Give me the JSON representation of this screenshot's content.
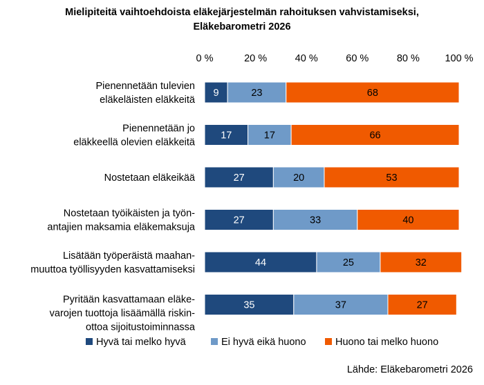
{
  "chart_data": {
    "type": "bar",
    "orientation": "horizontal",
    "stacked": true,
    "title": [
      "Mielipiteitä vaihtoehdoista eläkejärjestelmän rahoituksen vahvistamiseksi,",
      "Eläkebarometri 2026"
    ],
    "categories": [
      [
        "Pienennetään tulevien",
        "eläkeläisten eläkkeitä"
      ],
      [
        "Pienennetään jo",
        "eläkkeellä olevien eläkkeitä"
      ],
      [
        "Nostetaan eläkeikää"
      ],
      [
        "Nostetaan työikäisten ja työn-",
        "antajien maksamia eläkemaksuja"
      ],
      [
        "Lisätään työperäistä maahan-",
        "muuttoa työllisyyden kasvattamiseksi"
      ],
      [
        "Pyritään kasvattamaan eläke-",
        "varojen tuottoja lisäämällä riskin-",
        "ottoa sijoitustoiminnassa"
      ]
    ],
    "series": [
      {
        "name": "Hyvä tai melko hyvä",
        "color": "#1f497d",
        "values": [
          9,
          17,
          27,
          27,
          44,
          35
        ]
      },
      {
        "name": "Ei hyvä eikä huono",
        "color": "#6f9ac8",
        "values": [
          23,
          17,
          20,
          33,
          25,
          37
        ]
      },
      {
        "name": "Huono tai melko huono",
        "color": "#f05a00",
        "values": [
          68,
          66,
          53,
          40,
          32,
          27
        ]
      }
    ],
    "xlim": [
      0,
      100
    ],
    "xticks": [
      "0 %",
      "20 %",
      "40 %",
      "60 %",
      "80 %",
      "100 %"
    ],
    "xaxis_position": "top",
    "legend_position": "bottom",
    "grid": false
  },
  "source": "Lähde: Eläkebarometri 2026"
}
